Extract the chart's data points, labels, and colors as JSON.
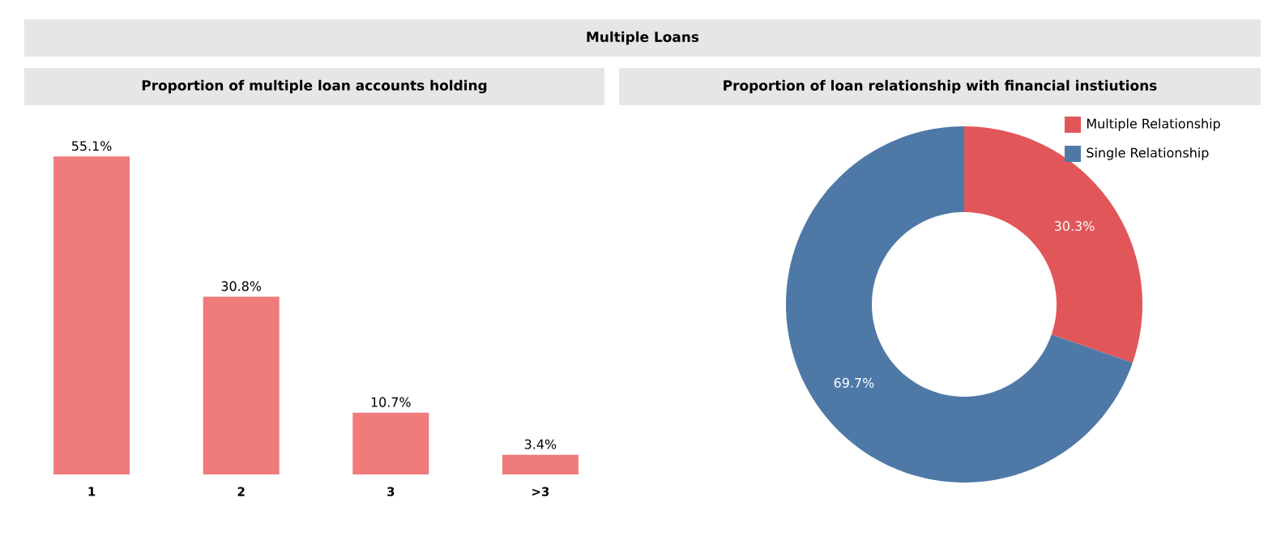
{
  "chart_data": [
    {
      "type": "other",
      "title": "Multiple Loans"
    },
    {
      "type": "bar",
      "title": "Proportion of multiple loan accounts holding",
      "categories": [
        "1",
        "2",
        "3",
        ">3"
      ],
      "values": [
        55.1,
        30.8,
        10.7,
        3.4
      ],
      "value_labels": [
        "55.1%",
        "30.8%",
        "10.7%",
        "3.4%"
      ],
      "color": "#f07b7b"
    },
    {
      "type": "donut",
      "title": "Proportion of loan relationship with financial instiutions",
      "categories": [
        "Multiple Relationship",
        "Single Relationship"
      ],
      "values": [
        30.3,
        69.7
      ],
      "value_labels": [
        "30.3%",
        "69.7%"
      ],
      "colors": [
        "#e15759",
        "#4e79a7"
      ],
      "legend": "top right"
    }
  ]
}
